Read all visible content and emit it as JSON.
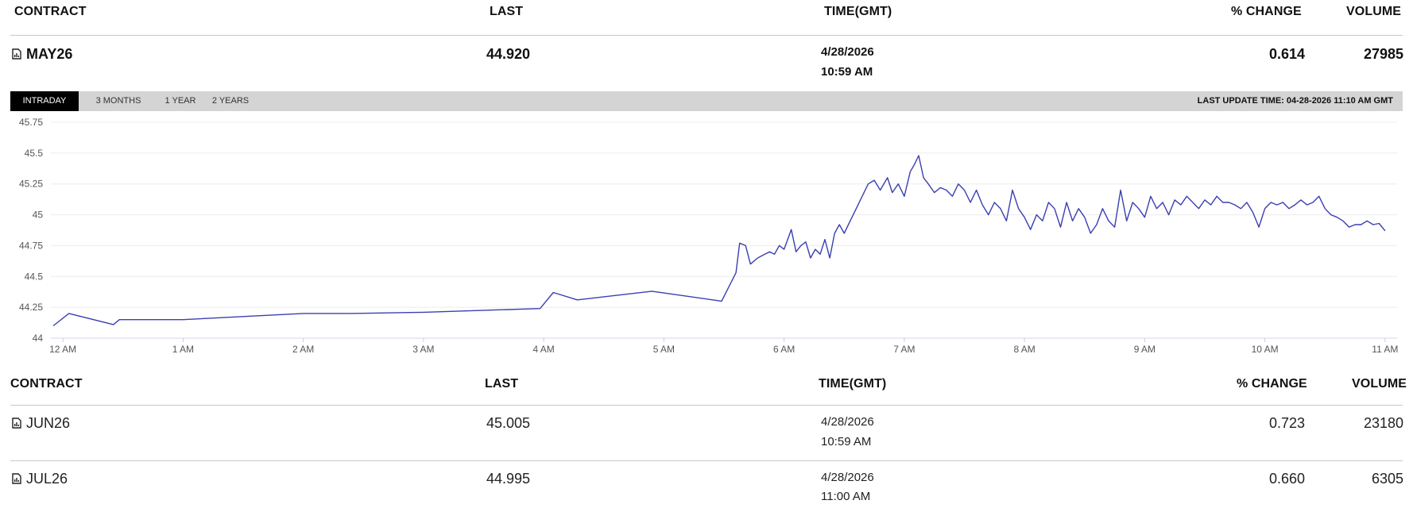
{
  "columns": {
    "contract": "CONTRACT",
    "last": "LAST",
    "time": "TIME(GMT)",
    "change": "% CHANGE",
    "volume": "VOLUME"
  },
  "main_contract": {
    "contract": "MAY26",
    "last": "44.920",
    "date": "4/28/2026",
    "time": "10:59 AM",
    "change": "0.614",
    "volume": "27985",
    "icon": "chart-document-icon"
  },
  "tabs": [
    "INTRADAY",
    "3 MONTHS",
    "1 YEAR",
    "2 YEARS"
  ],
  "active_tab": "INTRADAY",
  "last_update": "LAST UPDATE TIME: 04-28-2026 11:10 AM GMT",
  "other_contracts": [
    {
      "contract": "JUN26",
      "last": "45.005",
      "date": "4/28/2026",
      "time": "10:59 AM",
      "change": "0.723",
      "volume": "23180",
      "icon": "chart-document-icon"
    },
    {
      "contract": "JUL26",
      "last": "44.995",
      "date": "4/28/2026",
      "time": "11:00 AM",
      "change": "0.660",
      "volume": "6305",
      "icon": "chart-document-icon"
    }
  ],
  "colors": {
    "line": "#3a3fb0",
    "active_tab_bg": "#000000",
    "tab_bar_bg": "#d4d4d4"
  },
  "chart_data": {
    "type": "line",
    "xlabel": "",
    "ylabel": "",
    "ylim": [
      44,
      45.75
    ],
    "xlim": [
      -0.1,
      11.1
    ],
    "y_ticks": [
      "44",
      "44.25",
      "44.5",
      "44.75",
      "45",
      "45.25",
      "45.5",
      "45.75"
    ],
    "x_ticks": [
      "12 AM",
      "1 AM",
      "2 AM",
      "3 AM",
      "4 AM",
      "5 AM",
      "6 AM",
      "7 AM",
      "8 AM",
      "9 AM",
      "10 AM",
      "11 AM"
    ],
    "grid": true,
    "series": [
      {
        "x": [
          -0.08,
          0.05,
          0.42,
          0.47,
          0.5,
          1.0,
          2.0,
          2.4,
          3.0,
          3.97,
          4.08,
          4.28,
          4.9,
          5.48,
          5.6,
          5.63,
          5.68,
          5.72,
          5.78,
          5.84,
          5.88,
          5.92,
          5.96,
          6.0,
          6.06,
          6.1,
          6.14,
          6.18,
          6.22,
          6.26,
          6.3,
          6.34,
          6.38,
          6.42,
          6.46,
          6.5,
          6.55,
          6.6,
          6.65,
          6.7,
          6.75,
          6.8,
          6.86,
          6.9,
          6.95,
          7.0,
          7.05,
          7.08,
          7.12,
          7.16,
          7.2,
          7.25,
          7.3,
          7.35,
          7.4,
          7.45,
          7.5,
          7.55,
          7.6,
          7.65,
          7.7,
          7.75,
          7.8,
          7.85,
          7.9,
          7.95,
          8.0,
          8.05,
          8.1,
          8.15,
          8.2,
          8.25,
          8.3,
          8.35,
          8.4,
          8.45,
          8.5,
          8.55,
          8.6,
          8.65,
          8.7,
          8.75,
          8.8,
          8.85,
          8.9,
          8.95,
          9.0,
          9.05,
          9.1,
          9.15,
          9.2,
          9.25,
          9.3,
          9.35,
          9.4,
          9.45,
          9.5,
          9.55,
          9.6,
          9.65,
          9.7,
          9.75,
          9.8,
          9.85,
          9.9,
          9.95,
          10.0,
          10.05,
          10.1,
          10.15,
          10.2,
          10.25,
          10.3,
          10.35,
          10.4,
          10.45,
          10.5,
          10.55,
          10.6,
          10.65,
          10.7,
          10.75,
          10.8,
          10.85,
          10.9,
          10.95,
          11.0
        ],
        "y": [
          44.1,
          44.2,
          44.11,
          44.15,
          44.15,
          44.15,
          44.2,
          44.2,
          44.21,
          44.24,
          44.37,
          44.31,
          44.38,
          44.3,
          44.53,
          44.77,
          44.75,
          44.6,
          44.65,
          44.68,
          44.7,
          44.68,
          44.75,
          44.72,
          44.88,
          44.7,
          44.75,
          44.78,
          44.65,
          44.72,
          44.68,
          44.8,
          44.65,
          44.85,
          44.92,
          44.85,
          44.95,
          45.05,
          45.15,
          45.25,
          45.28,
          45.2,
          45.3,
          45.18,
          45.25,
          45.15,
          45.35,
          45.4,
          45.48,
          45.3,
          45.25,
          45.18,
          45.22,
          45.2,
          45.15,
          45.25,
          45.2,
          45.1,
          45.2,
          45.08,
          45.0,
          45.1,
          45.05,
          44.95,
          45.2,
          45.05,
          44.98,
          44.88,
          45.0,
          44.95,
          45.1,
          45.05,
          44.9,
          45.1,
          44.95,
          45.05,
          44.98,
          44.85,
          44.92,
          45.05,
          44.95,
          44.9,
          45.2,
          44.95,
          45.1,
          45.05,
          44.98,
          45.15,
          45.05,
          45.1,
          45.0,
          45.12,
          45.08,
          45.15,
          45.1,
          45.05,
          45.12,
          45.08,
          45.15,
          45.1,
          45.1,
          45.08,
          45.05,
          45.1,
          45.02,
          44.9,
          45.05,
          45.1,
          45.08,
          45.1,
          45.05,
          45.08,
          45.12,
          45.08,
          45.1,
          45.15,
          45.05,
          45.0,
          44.98,
          44.95,
          44.9,
          44.92,
          44.92,
          44.95,
          44.92,
          44.93,
          44.87
        ]
      }
    ]
  }
}
